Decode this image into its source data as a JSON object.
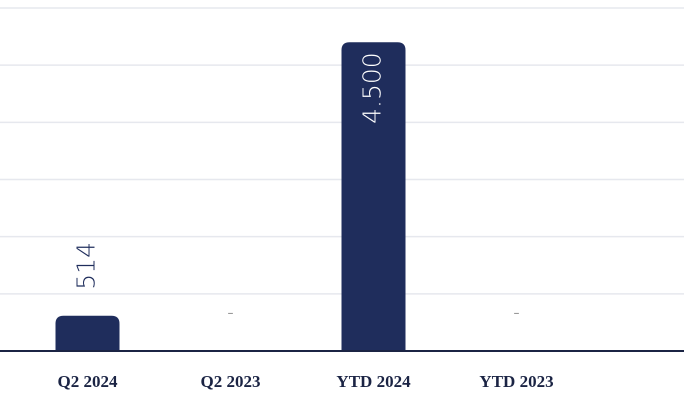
{
  "chart_data": {
    "type": "bar",
    "categories": [
      "Q2 2024",
      "Q2 2023",
      "YTD 2024",
      "YTD 2023"
    ],
    "values": [
      514,
      null,
      4500,
      null
    ],
    "value_labels": [
      "514",
      "-",
      "4.500",
      "-"
    ],
    "color": "#1f2d5c",
    "ylim": [
      0,
      5000
    ],
    "yticks": [
      0,
      833,
      1667,
      2500,
      3333,
      4167,
      5000
    ],
    "grid": true
  }
}
